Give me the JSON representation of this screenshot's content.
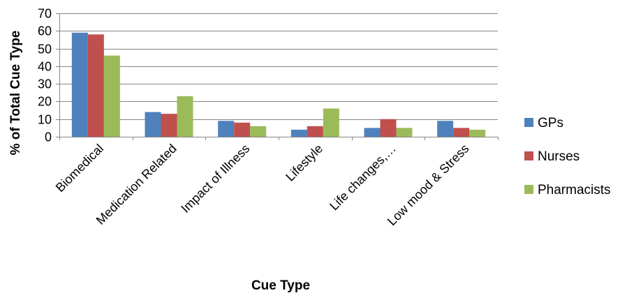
{
  "chart_data": {
    "type": "bar",
    "title": "",
    "xlabel": "Cue Type",
    "ylabel": "% of Total Cue Type",
    "ylim": [
      0,
      70
    ],
    "yticks": [
      0,
      10,
      20,
      30,
      40,
      50,
      60,
      70
    ],
    "grid": true,
    "legend_position": "right",
    "categories": [
      "Biomedical",
      "Medication Related",
      "Impact of Illness",
      "Lifestyle",
      "Life changes,…",
      "Low mood & Stress"
    ],
    "series": [
      {
        "name": "GPs",
        "color": "#4F81BD",
        "values": [
          59,
          14,
          9,
          4,
          5,
          9
        ]
      },
      {
        "name": "Nurses",
        "color": "#C0504D",
        "values": [
          58,
          13,
          8,
          6,
          10,
          5
        ]
      },
      {
        "name": "Pharmacists",
        "color": "#9BBB59",
        "values": [
          46,
          23,
          6,
          16,
          5,
          4
        ]
      }
    ]
  }
}
